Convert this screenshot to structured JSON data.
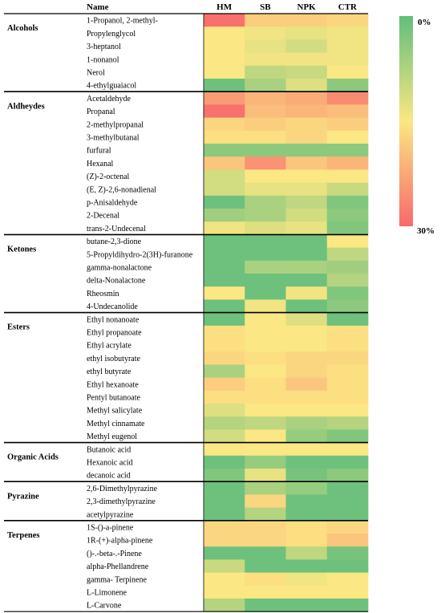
{
  "chart_data": {
    "type": "heatmap",
    "header_name": "Name",
    "columns": [
      "HM",
      "SB",
      "NPK",
      "CTR"
    ],
    "scale": {
      "min_label": "0%",
      "max_label": "30%",
      "min_value": 0,
      "max_value": 30,
      "colors": {
        "low": "#63be7b",
        "mid": "#fbe783",
        "high": "#f8696b"
      }
    },
    "groups": [
      {
        "category": "Alcohols",
        "rows": [
          {
            "name": "1-Propanol, 2-methyl-",
            "values": [
              29,
              18,
              18,
              17
            ]
          },
          {
            "name": "Propylenglycol",
            "values": [
              15,
              14,
              13,
              14
            ]
          },
          {
            "name": "3-heptanol",
            "values": [
              15,
              13,
              11,
              14
            ]
          },
          {
            "name": "1-nonanol",
            "values": [
              15,
              14,
              14,
              14
            ]
          },
          {
            "name": "Nerol",
            "values": [
              15,
              9,
              10,
              15
            ]
          },
          {
            "name": "4-ethylguaiacol",
            "values": [
              1,
              7,
              12,
              4
            ]
          }
        ]
      },
      {
        "category": "Aldheydes",
        "rows": [
          {
            "name": "Acetaldehyde",
            "values": [
              24,
              21,
              22,
              26
            ]
          },
          {
            "name": "Propanal",
            "values": [
              29,
              20,
              21,
              20
            ]
          },
          {
            "name": "2-methylpropanal",
            "values": [
              17,
              18,
              17,
              18
            ]
          },
          {
            "name": "3-methylbutanal",
            "values": [
              16,
              16,
              17,
              15
            ]
          },
          {
            "name": "furfural",
            "values": [
              4,
              4,
              4,
              4
            ]
          },
          {
            "name": "Hexanal",
            "values": [
              19,
              25,
              19,
              21
            ]
          },
          {
            "name": "(Z)-2-octenal",
            "values": [
              11,
              15,
              15,
              15
            ]
          },
          {
            "name": "(E, Z)-2,6-nonadienal",
            "values": [
              11,
              13,
              13,
              10
            ]
          },
          {
            "name": "p-Anisaldehyde",
            "values": [
              1,
              7,
              9,
              3
            ]
          },
          {
            "name": "2-Decenal",
            "values": [
              6,
              7,
              11,
              4
            ]
          },
          {
            "name": "trans-2-Undecenal",
            "values": [
              14,
              12,
              13,
              3
            ]
          }
        ]
      },
      {
        "category": "Ketones",
        "rows": [
          {
            "name": "butane-2,3-dione",
            "values": [
              1,
              1,
              1,
              15
            ]
          },
          {
            "name": "5-Propyldihydro-2(3H)-furanone",
            "values": [
              1,
              1,
              1,
              9
            ]
          },
          {
            "name": "gamma-nonalactone",
            "values": [
              1,
              7,
              7,
              6
            ]
          },
          {
            "name": "delta-Nonalactone",
            "values": [
              1,
              1,
              1,
              8
            ]
          },
          {
            "name": "Rheosmin",
            "values": [
              15,
              1,
              14,
              3
            ]
          },
          {
            "name": "4-Undecanolide",
            "values": [
              1,
              14,
              1,
              4
            ]
          }
        ]
      },
      {
        "category": "Esters",
        "rows": [
          {
            "name": "Ethyl nonanoate",
            "values": [
              1,
              15,
              12,
              1
            ]
          },
          {
            "name": "Ethyl propanoate",
            "values": [
              16,
              15,
              15,
              16
            ]
          },
          {
            "name": "Ethyl acrylate",
            "values": [
              16,
              15,
              15,
              16
            ]
          },
          {
            "name": "ethyl isobutyrate",
            "values": [
              17,
              16,
              17,
              17
            ]
          },
          {
            "name": "ethyl butyrate",
            "values": [
              7,
              15,
              17,
              16
            ]
          },
          {
            "name": "Ethyl hexanoate",
            "values": [
              18,
              16,
              19,
              16
            ]
          },
          {
            "name": "Pentyl butanoate",
            "values": [
              16,
              16,
              16,
              16
            ]
          },
          {
            "name": "Methyl salicylate",
            "values": [
              12,
              15,
              15,
              15
            ]
          },
          {
            "name": "Methyl cinnamate",
            "values": [
              8,
              9,
              7,
              8
            ]
          },
          {
            "name": "Methyl eugenol",
            "values": [
              11,
              15,
              5,
              3
            ]
          }
        ]
      },
      {
        "category": "Organic Acids",
        "rows": [
          {
            "name": "Butanoic acid",
            "values": [
              15,
              15,
              15,
              15
            ]
          },
          {
            "name": "Hexanoic acid",
            "values": [
              1,
              5,
              1,
              1
            ]
          },
          {
            "name": "decanoic acid",
            "values": [
              3,
              13,
              2,
              4
            ]
          }
        ]
      },
      {
        "category": "Pyrazine",
        "rows": [
          {
            "name": "2,6-Dimethylpyrazine",
            "values": [
              1,
              7,
              5,
              1
            ]
          },
          {
            "name": "2,3-dimethylpyrazine",
            "values": [
              1,
              17,
              1,
              1
            ]
          },
          {
            "name": "acetylpyrazine",
            "values": [
              1,
              8,
              1,
              1
            ]
          }
        ]
      },
      {
        "category": "Terpenes",
        "rows": [
          {
            "name": "1S-()-a-pinene",
            "values": [
              17,
              17,
              16,
              17
            ]
          },
          {
            "name": "1R-(+)-alpha-pinene",
            "values": [
              17,
              17,
              16,
              19
            ]
          },
          {
            "name": "()-.-beta-.-Pinene",
            "values": [
              1,
              1,
              9,
              2
            ]
          },
          {
            "name": "alpha-Phellandrene",
            "values": [
              10,
              1,
              1,
              1
            ]
          },
          {
            "name": "gamma- Terpinene",
            "values": [
              15,
              16,
              14,
              15
            ]
          },
          {
            "name": "L-Limonene",
            "values": [
              15,
              15,
              15,
              15
            ]
          },
          {
            "name": "L-Carvone",
            "values": [
              8,
              1,
              1,
              1
            ]
          }
        ]
      }
    ]
  }
}
